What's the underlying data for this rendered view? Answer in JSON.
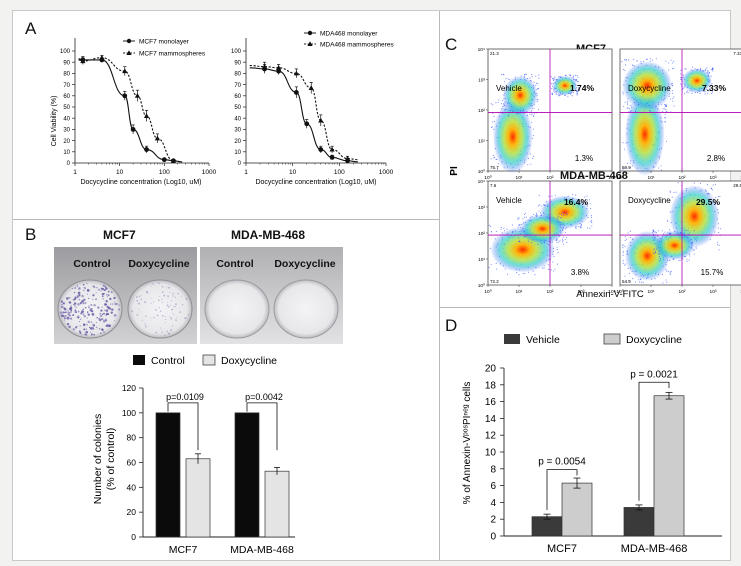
{
  "panels": {
    "a": "A",
    "b": "B",
    "c": "C",
    "d": "D"
  },
  "panel_a": {
    "left_legend": [
      "MCF7 monolayer",
      "MCF7 mammospheres"
    ],
    "right_legend": [
      "MDA468 monolayer",
      "MDA468 mammospheres"
    ],
    "ylabel": "Cell Viability (%)",
    "xlabel": "Docycycline concentration (Log10, uM)",
    "y_ticks": [
      "100",
      "90",
      "80",
      "70",
      "60",
      "50",
      "40",
      "30",
      "20",
      "10",
      "0"
    ],
    "x_ticks": [
      "1",
      "10",
      "100",
      "1000"
    ]
  },
  "panel_b": {
    "photo_titles": [
      "MCF7",
      "MDA-MB-468"
    ],
    "dish_labels": [
      "Control",
      "Doxycycline",
      "Control",
      "Doxycycline"
    ],
    "legend": [
      "Control",
      "Doxycycline"
    ],
    "ylabel_line1": "Number of colonies",
    "ylabel_line2": "(% of control)",
    "pvalues": [
      "p=0.0109",
      "p=0.0042"
    ],
    "y_ticks": [
      "120",
      "100",
      "80",
      "60",
      "40",
      "20",
      "0"
    ],
    "categories": [
      "MCF7",
      "MDA-MB-468"
    ]
  },
  "panel_c": {
    "titles": [
      "MCF7",
      "MDA-MB-468"
    ],
    "ylabel": "PI",
    "xlabel": "Annexin-V-FITC",
    "quadrants": [
      {
        "condition": "Vehicle",
        "upper_right": "1.74%",
        "lower_right": "1.3%",
        "corner_ul": "21.3",
        "corner_ur": "",
        "corner_ll": "75.7"
      },
      {
        "condition": "Doxycycline",
        "upper_right": "7.33%",
        "lower_right": "2.8%",
        "corner_ul": "",
        "corner_ur": "7.33",
        "corner_ll": "69.9"
      },
      {
        "condition": "Vehicle",
        "upper_right": "16.4%",
        "lower_right": "3.8%",
        "corner_ul": "7.6",
        "corner_ur": "",
        "corner_ll": "72.2"
      },
      {
        "condition": "Doxycycline",
        "upper_right": "29.5%",
        "lower_right": "15.7%",
        "corner_ul": "",
        "corner_ur": "29.5",
        "corner_ll": "54.9"
      }
    ],
    "axis_ticks": [
      "10⁰",
      "10¹",
      "10²",
      "10³",
      "10⁴"
    ]
  },
  "panel_d": {
    "legend": [
      "Vehicle",
      "Doxycycline"
    ],
    "ylabel": "% of Annexin-VᵖᵒˢPIⁿᵉᵍ cells",
    "pvalues": [
      "p = 0.0054",
      "p = 0.0021"
    ],
    "y_ticks": [
      "20",
      "18",
      "16",
      "14",
      "12",
      "10",
      "8",
      "6",
      "4",
      "2",
      "0"
    ],
    "categories": [
      "MCF7",
      "MDA-MB-468"
    ]
  },
  "colors": {
    "control_bar": "#0b0b0b",
    "doxy_bar": "#e4e4e4",
    "vehicle_bar": "#3a3a3a",
    "doxy_bar_d": "#cdcdcd",
    "gate_line": "#b000b0"
  },
  "chart_data": [
    {
      "type": "line",
      "panel": "A-left",
      "x_scale": "log10",
      "xlabel": "Docycycline concentration (Log10, uM)",
      "ylabel": "Cell Viability (%)",
      "ylim": [
        0,
        100
      ],
      "xlim": [
        1,
        1000
      ],
      "series": [
        {
          "name": "MCF7 monolayer",
          "x": [
            1.5,
            4.0,
            13.0,
            20.0,
            40.0,
            100.0,
            160.0
          ],
          "y": [
            92,
            92,
            60,
            30,
            12,
            3,
            2
          ],
          "err": [
            3,
            2,
            4,
            4,
            3,
            1,
            1
          ]
        },
        {
          "name": "MCF7 mammospheres",
          "x": [
            1.5,
            4.0,
            13.0,
            25.0,
            40.0,
            70.0,
            160.0
          ],
          "y": [
            91,
            94,
            82,
            60,
            42,
            22,
            2
          ],
          "err": [
            3,
            2,
            4,
            5,
            5,
            4,
            1
          ]
        }
      ]
    },
    {
      "type": "line",
      "panel": "A-right",
      "x_scale": "log10",
      "xlabel": "Docycycline concentration (Log10, uM)",
      "ylabel": "Cell Viability (%)",
      "ylim": [
        0,
        100
      ],
      "xlim": [
        1,
        1000
      ],
      "series": [
        {
          "name": "MDA468 monolayer",
          "x": [
            2.5,
            5.0,
            12.0,
            20.0,
            40.0,
            70.0,
            150.0
          ],
          "y": [
            84,
            82,
            63,
            35,
            12,
            5,
            2
          ],
          "err": [
            4,
            3,
            5,
            4,
            3,
            2,
            1
          ]
        },
        {
          "name": "MDA468 mammospheres",
          "x": [
            2.5,
            5.0,
            12.0,
            25.0,
            40.0,
            70.0,
            150.0
          ],
          "y": [
            86,
            85,
            80,
            67,
            38,
            12,
            4
          ],
          "err": [
            4,
            3,
            4,
            5,
            5,
            3,
            2
          ]
        }
      ]
    },
    {
      "type": "bar",
      "panel": "B",
      "categories": [
        "MCF7",
        "MDA-MB-468"
      ],
      "ylabel": "Number of colonies (% of control)",
      "ylim": [
        0,
        120
      ],
      "series": [
        {
          "name": "Control",
          "values": [
            100,
            100
          ],
          "err": [
            0,
            0
          ]
        },
        {
          "name": "Doxycycline",
          "values": [
            63,
            53
          ],
          "err": [
            4,
            3
          ]
        }
      ]
    },
    {
      "type": "bar",
      "panel": "D",
      "categories": [
        "MCF7",
        "MDA-MB-468"
      ],
      "ylabel": "% of Annexin-VᵖᵒˢPIⁿᵉᵍ cells",
      "ylim": [
        0,
        20
      ],
      "series": [
        {
          "name": "Vehicle",
          "values": [
            2.3,
            3.4
          ],
          "err": [
            0.3,
            0.3
          ]
        },
        {
          "name": "Doxycycline",
          "values": [
            6.3,
            16.7
          ],
          "err": [
            0.6,
            0.4
          ]
        }
      ]
    }
  ]
}
